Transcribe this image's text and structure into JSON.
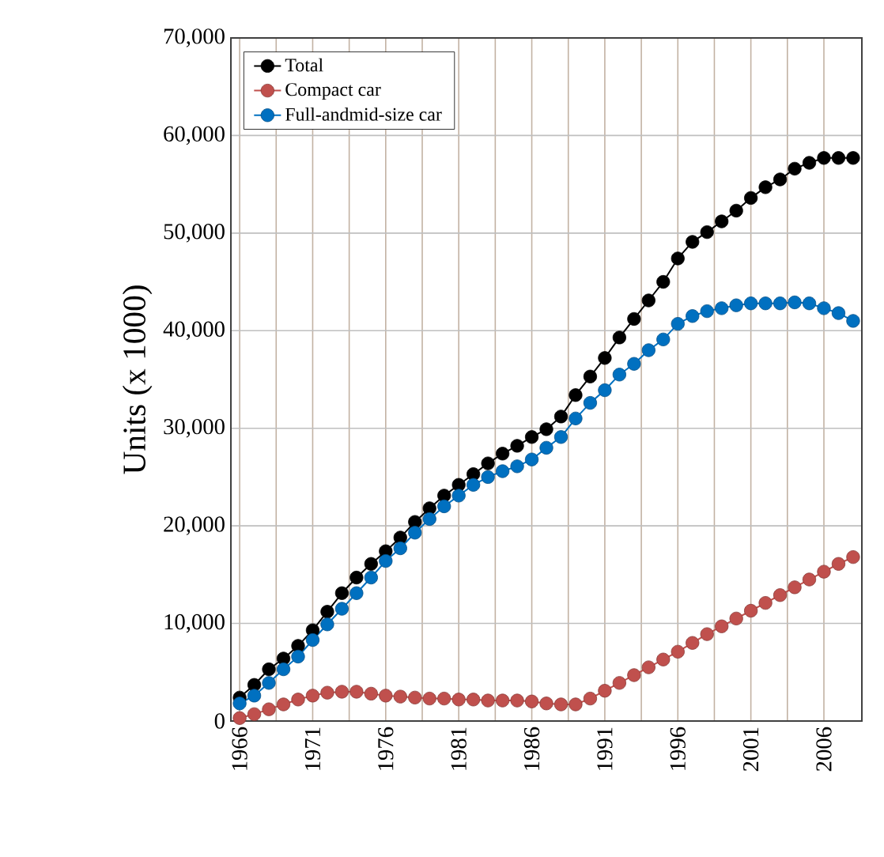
{
  "chart_data": {
    "type": "line",
    "ylabel": "Units (x 1000)",
    "x": [
      1966,
      1967,
      1968,
      1969,
      1970,
      1971,
      1972,
      1973,
      1974,
      1975,
      1976,
      1977,
      1978,
      1979,
      1980,
      1981,
      1982,
      1983,
      1984,
      1985,
      1986,
      1987,
      1988,
      1989,
      1990,
      1991,
      1992,
      1993,
      1994,
      1995,
      1996,
      1997,
      1998,
      1999,
      2000,
      2001,
      2002,
      2003,
      2004,
      2005,
      2006,
      2007,
      2008
    ],
    "xlim": [
      1965.4,
      2008.6
    ],
    "xticks": [
      1966,
      {
        "value": 1968.5,
        "label": null
      },
      1971,
      {
        "value": 1973.5,
        "label": null
      },
      1976,
      {
        "value": 1978.5,
        "label": null
      },
      1981,
      {
        "value": 1983.5,
        "label": null
      },
      1986,
      {
        "value": 1988.5,
        "label": null
      },
      1991,
      {
        "value": 1993.5,
        "label": null
      },
      1996,
      {
        "value": 1998.5,
        "label": null
      },
      2001,
      {
        "value": 2003.5,
        "label": null
      },
      2006
    ],
    "ylim": [
      0,
      70000
    ],
    "yticks": [
      0,
      {
        "value": 10000,
        "label": "10,000"
      },
      {
        "value": 20000,
        "label": "20,000"
      },
      {
        "value": 30000,
        "label": "30,000"
      },
      {
        "value": 40000,
        "label": "40,000"
      },
      {
        "value": 50000,
        "label": "50,000"
      },
      {
        "value": 60000,
        "label": "60,000"
      },
      {
        "value": 70000,
        "label": "70,000"
      }
    ],
    "grid": true,
    "legend": "top left",
    "marker": "circle",
    "series": [
      {
        "name": "Total",
        "color": "#000000",
        "values": [
          2400,
          3700,
          5300,
          6400,
          7700,
          9300,
          11200,
          13100,
          14700,
          16100,
          17400,
          18800,
          20400,
          21800,
          23100,
          24200,
          25300,
          26400,
          27400,
          28200,
          29100,
          29900,
          31200,
          33400,
          35300,
          37200,
          39300,
          41200,
          43100,
          45000,
          47400,
          49100,
          50100,
          51200,
          52300,
          53600,
          54700,
          55500,
          56600,
          57200,
          57700,
          57700,
          57700
        ]
      },
      {
        "name": "Compact car",
        "color": "#c0504d",
        "values": [
          300,
          700,
          1200,
          1700,
          2200,
          2600,
          2900,
          3000,
          3000,
          2800,
          2600,
          2500,
          2400,
          2300,
          2300,
          2200,
          2200,
          2100,
          2100,
          2100,
          2000,
          1800,
          1700,
          1700,
          2300,
          3100,
          3900,
          4700,
          5500,
          6300,
          7100,
          8000,
          8900,
          9700,
          10500,
          11300,
          12100,
          12900,
          13700,
          14500,
          15300,
          16100,
          16800
        ]
      },
      {
        "name": "Full-andmid-size car",
        "color": "#0070c0",
        "values": [
          1800,
          2600,
          3900,
          5300,
          6600,
          8300,
          9900,
          11500,
          13100,
          14700,
          16400,
          17700,
          19300,
          20700,
          22000,
          23100,
          24200,
          25000,
          25600,
          26100,
          26800,
          28000,
          29100,
          31000,
          32600,
          33900,
          35500,
          36600,
          38000,
          39100,
          40700,
          41500,
          42000,
          42300,
          42600,
          42800,
          42800,
          42800,
          42900,
          42800,
          42300,
          41800,
          41000
        ]
      }
    ]
  }
}
